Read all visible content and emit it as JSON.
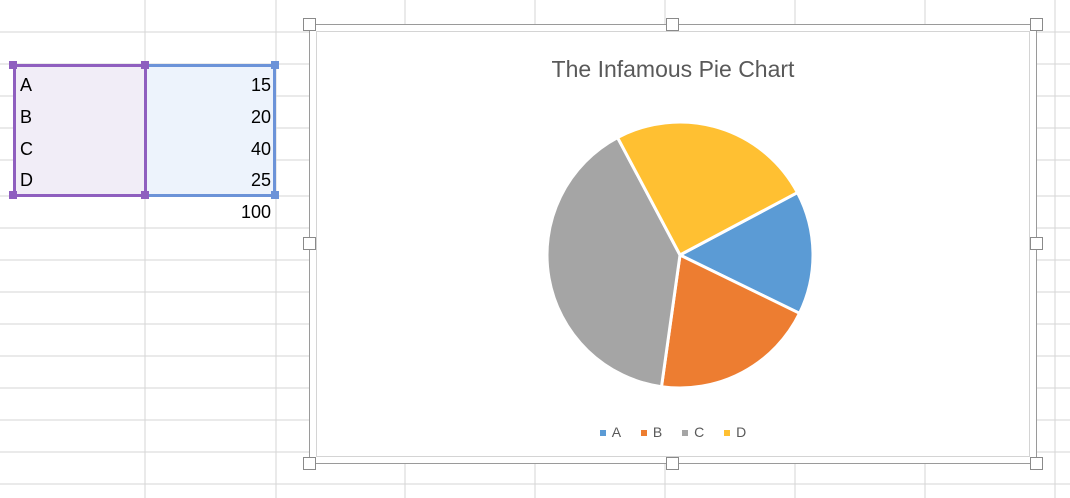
{
  "sheet": {
    "rows": [
      {
        "label": "A",
        "value": "15"
      },
      {
        "label": "B",
        "value": "20"
      },
      {
        "label": "C",
        "value": "40"
      },
      {
        "label": "D",
        "value": "25"
      }
    ],
    "total": "100"
  },
  "chart_data": {
    "type": "pie",
    "title": "The Infamous Pie Chart",
    "categories": [
      "A",
      "B",
      "C",
      "D"
    ],
    "values": [
      15,
      20,
      40,
      25
    ],
    "colors": [
      "#5b9bd5",
      "#ed7d31",
      "#a5a5a5",
      "#ffc032"
    ],
    "legend": "bottom",
    "start_angle_deg": 0,
    "direction": "clockwise"
  },
  "colors": {
    "gridline": "#d6d6d6",
    "selection_labels": "#8f5fbf",
    "selection_values": "#6c93d8",
    "title_text": "#595959"
  }
}
